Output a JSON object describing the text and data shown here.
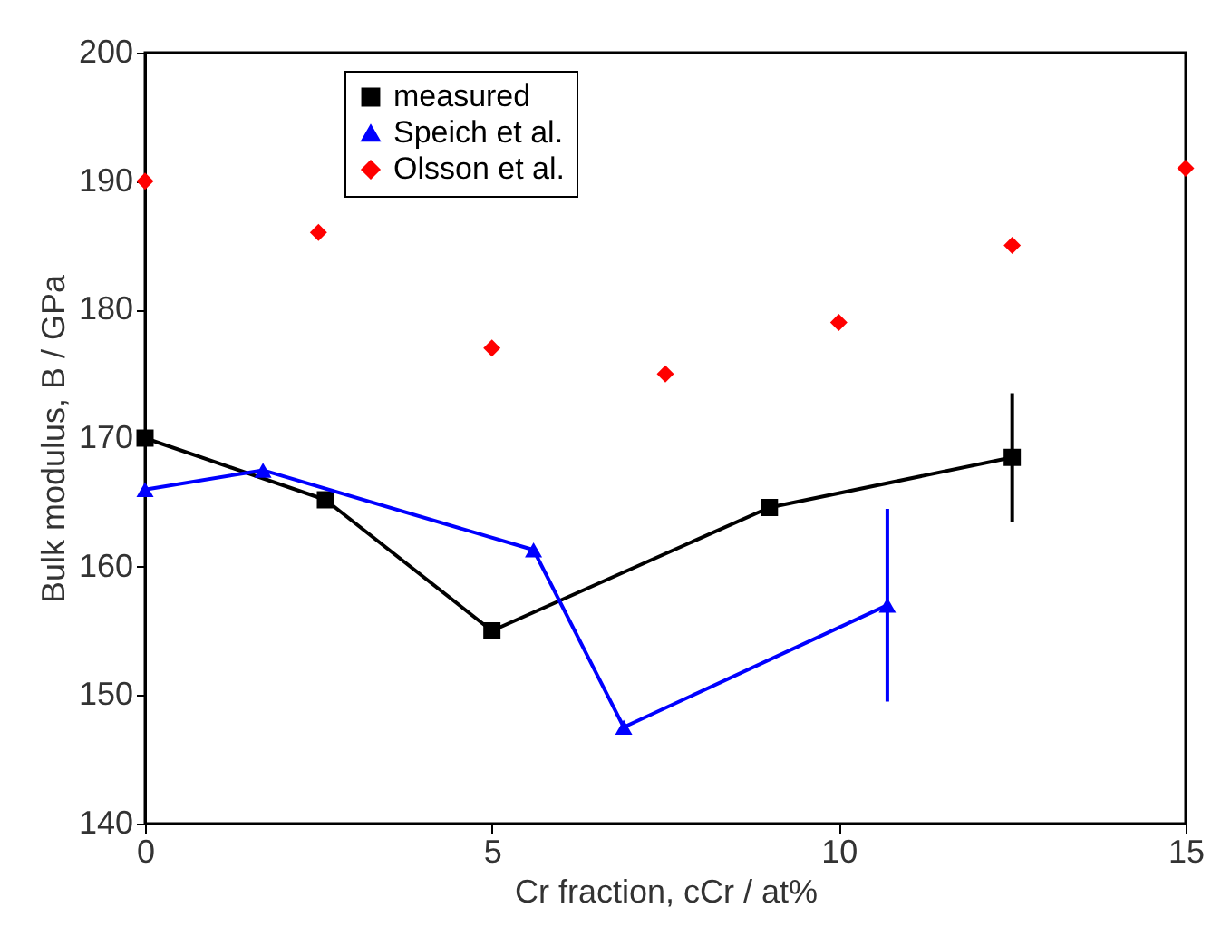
{
  "chart_data": {
    "type": "line",
    "xlabel": "Cr fraction, cCr / at%",
    "ylabel": "Bulk modulus, B / GPa",
    "xlim": [
      0,
      15
    ],
    "xticks": [
      0,
      5,
      10,
      15
    ],
    "ylim": [
      140,
      200
    ],
    "yticks": [
      140,
      150,
      160,
      170,
      180,
      190,
      200
    ],
    "grid": false,
    "legend": "top",
    "series": [
      {
        "name": "measured",
        "line_style": "solid",
        "marker": "square",
        "color": "#000000",
        "x": [
          0,
          2.6,
          5,
          9,
          12.5
        ],
        "values": [
          170,
          165.2,
          155,
          164.6,
          168.5
        ],
        "errors": [
          null,
          null,
          null,
          null,
          5
        ]
      },
      {
        "name": "Speich et al.",
        "line_style": "solid",
        "marker": "triangle",
        "color": "#0000ff",
        "x": [
          0,
          1.7,
          5.6,
          6.9,
          10.7
        ],
        "values": [
          166,
          167.5,
          161.3,
          147.5,
          157
        ],
        "errors": [
          null,
          null,
          null,
          null,
          7.5
        ]
      },
      {
        "name": "Olsson et al.",
        "type": "scatter",
        "marker": "diamond",
        "color": "#ff0000",
        "x": [
          0,
          2.5,
          5,
          7.5,
          10,
          12.5,
          15
        ],
        "values": [
          190,
          186,
          177,
          175,
          179,
          185,
          191
        ]
      }
    ]
  }
}
